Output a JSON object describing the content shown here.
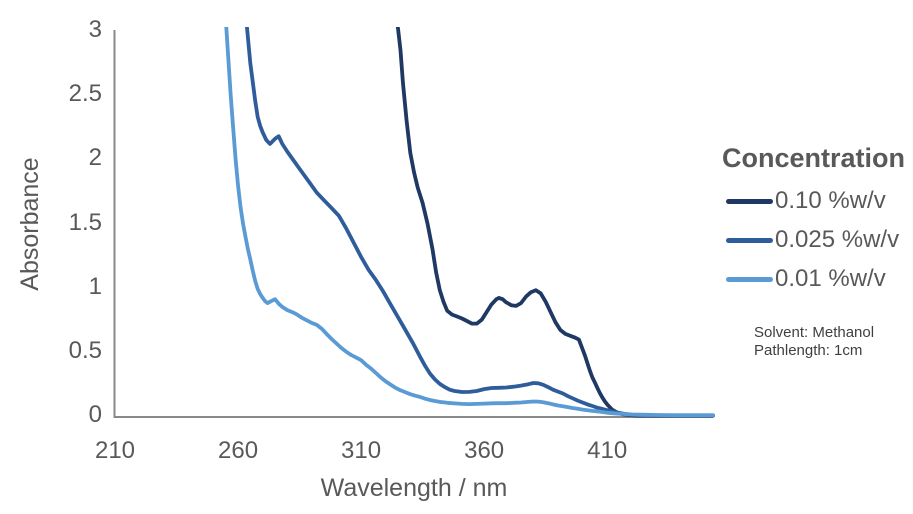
{
  "chart_data": {
    "type": "line",
    "title": "",
    "xlabel": "Wavelength / nm",
    "ylabel": "Absorbance",
    "xlim": [
      210,
      453
    ],
    "ylim": [
      0,
      3
    ],
    "x_ticks": [
      210,
      260,
      310,
      360,
      410
    ],
    "y_ticks": [
      "0",
      "0.5",
      "1",
      "1.5",
      "2",
      "2.5",
      "3"
    ],
    "grid": false,
    "legend": {
      "title": "Concentration",
      "position": "right"
    },
    "annotation": {
      "line1": "Solvent: Methanol",
      "line2": "Pathlength: 1cm"
    },
    "axis_color": "#898989",
    "label_color": "#595959",
    "series": [
      {
        "name": "0.10 %w/v",
        "color": "#1f3864",
        "points": [
          [
            321,
            3.6
          ],
          [
            323,
            3.25
          ],
          [
            325,
            3.02
          ],
          [
            326,
            2.85
          ],
          [
            327,
            2.6
          ],
          [
            328.5,
            2.3
          ],
          [
            330,
            2.05
          ],
          [
            331.5,
            1.9
          ],
          [
            333,
            1.78
          ],
          [
            335,
            1.66
          ],
          [
            337,
            1.5
          ],
          [
            339,
            1.3
          ],
          [
            340.5,
            1.12
          ],
          [
            342,
            0.98
          ],
          [
            343.5,
            0.89
          ],
          [
            345,
            0.82
          ],
          [
            347,
            0.79
          ],
          [
            349,
            0.775
          ],
          [
            351,
            0.76
          ],
          [
            353,
            0.74
          ],
          [
            355,
            0.72
          ],
          [
            357,
            0.72
          ],
          [
            359,
            0.75
          ],
          [
            361,
            0.81
          ],
          [
            363,
            0.87
          ],
          [
            365,
            0.91
          ],
          [
            366,
            0.92
          ],
          [
            367.5,
            0.91
          ],
          [
            369,
            0.885
          ],
          [
            371,
            0.863
          ],
          [
            373,
            0.858
          ],
          [
            375,
            0.88
          ],
          [
            377,
            0.93
          ],
          [
            379,
            0.965
          ],
          [
            381,
            0.98
          ],
          [
            383,
            0.955
          ],
          [
            385,
            0.89
          ],
          [
            387,
            0.81
          ],
          [
            389,
            0.73
          ],
          [
            391,
            0.67
          ],
          [
            393,
            0.64
          ],
          [
            395,
            0.625
          ],
          [
            397,
            0.61
          ],
          [
            398.5,
            0.595
          ],
          [
            400,
            0.52
          ],
          [
            401,
            0.47
          ],
          [
            402,
            0.41
          ],
          [
            403,
            0.35
          ],
          [
            404,
            0.3
          ],
          [
            405,
            0.26
          ],
          [
            406,
            0.22
          ],
          [
            407,
            0.18
          ],
          [
            408,
            0.145
          ],
          [
            409,
            0.115
          ],
          [
            410,
            0.09
          ],
          [
            411,
            0.07
          ],
          [
            412,
            0.05
          ],
          [
            413,
            0.038
          ],
          [
            414,
            0.028
          ],
          [
            415,
            0.02
          ],
          [
            417,
            0.012
          ],
          [
            419,
            0.007
          ],
          [
            421,
            0.005
          ],
          [
            424,
            0.003
          ],
          [
            428,
            0.002
          ],
          [
            433,
            0.002
          ],
          [
            440,
            0.002
          ],
          [
            446,
            0.002
          ],
          [
            453,
            0.002
          ]
        ]
      },
      {
        "name": "0.025 %w/v",
        "color": "#2f5d9b",
        "points": [
          [
            262,
            3.6
          ],
          [
            263.5,
            3.05
          ],
          [
            265,
            2.75
          ],
          [
            266,
            2.6
          ],
          [
            267,
            2.45
          ],
          [
            268,
            2.33
          ],
          [
            269,
            2.26
          ],
          [
            270,
            2.21
          ],
          [
            271.5,
            2.15
          ],
          [
            273,
            2.12
          ],
          [
            275,
            2.16
          ],
          [
            276.5,
            2.18
          ],
          [
            278,
            2.12
          ],
          [
            280,
            2.06
          ],
          [
            283,
            1.98
          ],
          [
            286,
            1.9
          ],
          [
            289,
            1.82
          ],
          [
            292,
            1.74
          ],
          [
            295,
            1.68
          ],
          [
            298,
            1.62
          ],
          [
            301,
            1.56
          ],
          [
            304,
            1.46
          ],
          [
            307,
            1.35
          ],
          [
            310,
            1.24
          ],
          [
            313,
            1.14
          ],
          [
            316,
            1.06
          ],
          [
            319,
            0.97
          ],
          [
            322,
            0.87
          ],
          [
            325,
            0.77
          ],
          [
            328,
            0.67
          ],
          [
            331,
            0.57
          ],
          [
            334,
            0.46
          ],
          [
            336,
            0.39
          ],
          [
            338,
            0.33
          ],
          [
            340,
            0.285
          ],
          [
            342,
            0.25
          ],
          [
            344,
            0.225
          ],
          [
            346,
            0.205
          ],
          [
            348,
            0.195
          ],
          [
            351,
            0.187
          ],
          [
            354,
            0.188
          ],
          [
            357,
            0.195
          ],
          [
            360,
            0.21
          ],
          [
            363,
            0.218
          ],
          [
            366,
            0.22
          ],
          [
            369,
            0.222
          ],
          [
            372,
            0.228
          ],
          [
            375,
            0.237
          ],
          [
            378,
            0.248
          ],
          [
            380,
            0.257
          ],
          [
            382,
            0.255
          ],
          [
            384,
            0.243
          ],
          [
            386,
            0.225
          ],
          [
            388,
            0.205
          ],
          [
            390,
            0.19
          ],
          [
            392,
            0.175
          ],
          [
            394,
            0.155
          ],
          [
            396,
            0.138
          ],
          [
            398,
            0.12
          ],
          [
            400,
            0.105
          ],
          [
            402,
            0.09
          ],
          [
            404,
            0.078
          ],
          [
            406,
            0.065
          ],
          [
            408,
            0.055
          ],
          [
            410,
            0.045
          ],
          [
            412,
            0.035
          ],
          [
            414,
            0.027
          ],
          [
            416,
            0.02
          ],
          [
            418,
            0.014
          ],
          [
            420,
            0.01
          ],
          [
            423,
            0.007
          ],
          [
            426,
            0.005
          ],
          [
            430,
            0.004
          ],
          [
            435,
            0.0035
          ],
          [
            440,
            0.003
          ],
          [
            445,
            0.003
          ],
          [
            450,
            0.003
          ],
          [
            453,
            0.003
          ]
        ]
      },
      {
        "name": "0.01 %w/v",
        "color": "#5b9bd5",
        "points": [
          [
            253.5,
            3.6
          ],
          [
            255,
            3.1
          ],
          [
            256,
            2.8
          ],
          [
            257,
            2.5
          ],
          [
            258,
            2.25
          ],
          [
            259,
            2.0
          ],
          [
            260,
            1.8
          ],
          [
            261,
            1.63
          ],
          [
            262,
            1.5
          ],
          [
            263,
            1.4
          ],
          [
            264,
            1.3
          ],
          [
            265,
            1.22
          ],
          [
            266,
            1.13
          ],
          [
            267,
            1.05
          ],
          [
            268,
            0.99
          ],
          [
            269,
            0.95
          ],
          [
            270,
            0.92
          ],
          [
            271,
            0.895
          ],
          [
            272,
            0.88
          ],
          [
            273.5,
            0.895
          ],
          [
            275,
            0.91
          ],
          [
            276.5,
            0.875
          ],
          [
            278,
            0.85
          ],
          [
            280,
            0.825
          ],
          [
            282,
            0.81
          ],
          [
            284,
            0.79
          ],
          [
            286,
            0.765
          ],
          [
            288,
            0.745
          ],
          [
            290,
            0.725
          ],
          [
            292,
            0.71
          ],
          [
            294,
            0.68
          ],
          [
            296,
            0.64
          ],
          [
            298,
            0.6
          ],
          [
            300,
            0.565
          ],
          [
            302,
            0.53
          ],
          [
            304,
            0.5
          ],
          [
            306,
            0.475
          ],
          [
            308,
            0.455
          ],
          [
            310,
            0.435
          ],
          [
            312,
            0.4
          ],
          [
            314,
            0.37
          ],
          [
            316,
            0.335
          ],
          [
            318,
            0.3
          ],
          [
            320,
            0.27
          ],
          [
            322,
            0.245
          ],
          [
            324,
            0.22
          ],
          [
            326,
            0.2
          ],
          [
            328,
            0.185
          ],
          [
            330,
            0.17
          ],
          [
            332,
            0.158
          ],
          [
            334,
            0.148
          ],
          [
            336,
            0.135
          ],
          [
            338,
            0.125
          ],
          [
            340,
            0.117
          ],
          [
            342,
            0.11
          ],
          [
            345,
            0.103
          ],
          [
            348,
            0.098
          ],
          [
            351,
            0.094
          ],
          [
            354,
            0.093
          ],
          [
            357,
            0.094
          ],
          [
            360,
            0.097
          ],
          [
            363,
            0.099
          ],
          [
            366,
            0.1
          ],
          [
            369,
            0.1
          ],
          [
            372,
            0.103
          ],
          [
            375,
            0.105
          ],
          [
            378,
            0.11
          ],
          [
            380,
            0.113
          ],
          [
            382,
            0.112
          ],
          [
            384,
            0.107
          ],
          [
            386,
            0.1
          ],
          [
            388,
            0.09
          ],
          [
            390,
            0.082
          ],
          [
            392,
            0.076
          ],
          [
            394,
            0.069
          ],
          [
            396,
            0.062
          ],
          [
            398,
            0.056
          ],
          [
            400,
            0.05
          ],
          [
            402,
            0.045
          ],
          [
            404,
            0.04
          ],
          [
            406,
            0.036
          ],
          [
            408,
            0.031
          ],
          [
            410,
            0.026
          ],
          [
            412,
            0.022
          ],
          [
            414,
            0.019
          ],
          [
            416,
            0.016
          ],
          [
            418,
            0.014
          ],
          [
            420,
            0.012
          ],
          [
            423,
            0.01
          ],
          [
            426,
            0.009
          ],
          [
            430,
            0.008
          ],
          [
            435,
            0.007
          ],
          [
            440,
            0.0065
          ],
          [
            445,
            0.006
          ],
          [
            450,
            0.006
          ],
          [
            453,
            0.006
          ]
        ]
      }
    ]
  }
}
